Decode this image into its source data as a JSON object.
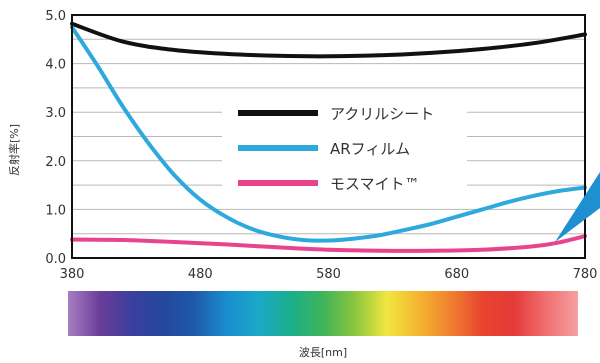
{
  "chart_data": {
    "type": "line",
    "title": "",
    "xlabel": "波長[nm]",
    "ylabel": "反射率[%]",
    "xlim": [
      380,
      780
    ],
    "ylim": [
      0,
      5
    ],
    "x_ticks": [
      "380",
      "480",
      "580",
      "680",
      "780"
    ],
    "y_ticks": [
      "0.0",
      "1.0",
      "2.0",
      "3.0",
      "4.0",
      "5.0"
    ],
    "grid": true,
    "legend_position": "center",
    "series": [
      {
        "name": "アクリルシート",
        "color": "#111111",
        "x": [
          380,
          420,
          460,
          500,
          540,
          580,
          620,
          660,
          700,
          740,
          780
        ],
        "y": [
          4.82,
          4.45,
          4.28,
          4.2,
          4.16,
          4.15,
          4.17,
          4.22,
          4.3,
          4.42,
          4.6
        ]
      },
      {
        "name": "ARフィルム",
        "color": "#2ea9dd",
        "x": [
          380,
          400,
          420,
          440,
          460,
          480,
          500,
          520,
          540,
          560,
          580,
          600,
          620,
          640,
          660,
          680,
          700,
          720,
          740,
          760,
          780
        ],
        "y": [
          4.75,
          3.95,
          3.1,
          2.35,
          1.7,
          1.2,
          0.85,
          0.6,
          0.45,
          0.37,
          0.36,
          0.4,
          0.47,
          0.58,
          0.7,
          0.85,
          1.0,
          1.15,
          1.28,
          1.38,
          1.45
        ]
      },
      {
        "name": "モスマイト™",
        "color": "#e8448e",
        "x": [
          380,
          420,
          460,
          500,
          540,
          580,
          620,
          660,
          700,
          740,
          760,
          780
        ],
        "y": [
          0.38,
          0.37,
          0.33,
          0.28,
          0.22,
          0.17,
          0.15,
          0.15,
          0.17,
          0.24,
          0.32,
          0.45
        ]
      }
    ]
  },
  "spectrum_colors": [
    "#a77fc0",
    "#6a3d99",
    "#3b3f9e",
    "#23489c",
    "#1e5aab",
    "#1a8fd0",
    "#19a9c6",
    "#1aae8a",
    "#3fb45a",
    "#8cc63e",
    "#f0e640",
    "#f5b530",
    "#f08030",
    "#e8442f",
    "#e53a3a",
    "#f07070",
    "#f6a0a0"
  ],
  "pointer_color": "#1e8fd0"
}
